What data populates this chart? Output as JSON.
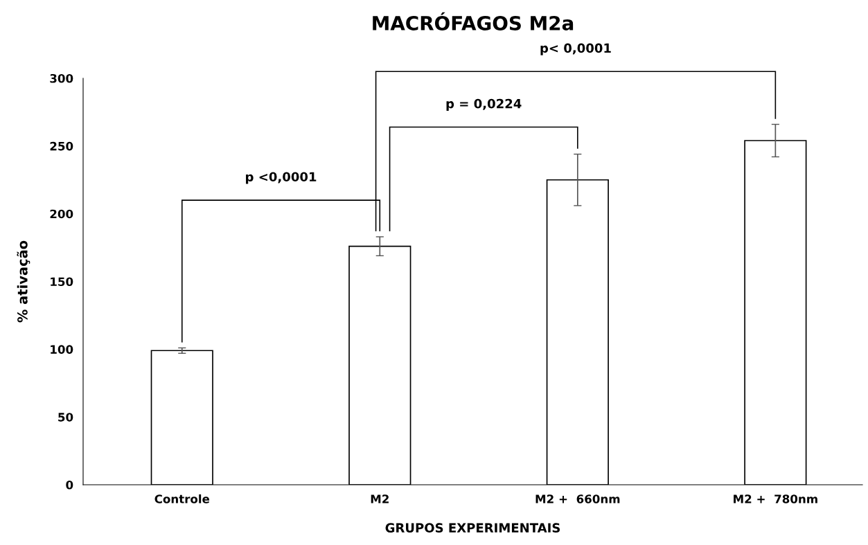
{
  "chart_data": {
    "type": "bar",
    "title": "MACRÓFAGOS M2a",
    "xlabel": "GRUPOS EXPERIMENTAIS",
    "ylabel": "% ativação",
    "categories": [
      "Controle",
      "M2",
      "M2 +  660nm",
      "M2 +  780nm"
    ],
    "values": [
      99,
      176,
      225,
      254
    ],
    "errors": [
      2,
      7,
      19,
      12
    ],
    "color": "#ffffff",
    "ylim": [
      0,
      300
    ],
    "yticks": [
      0,
      50,
      100,
      150,
      200,
      250,
      300
    ],
    "grid": false,
    "annotations": [
      "p <0,0001",
      "p = 0,0224",
      "p< 0,0001"
    ]
  }
}
